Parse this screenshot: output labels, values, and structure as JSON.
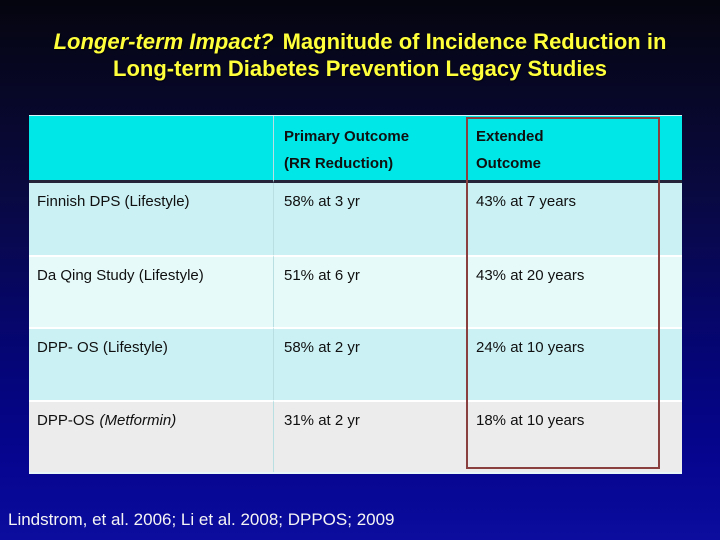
{
  "title": {
    "line1_italic": "Longer-term Impact?",
    "line1_rest": "Magnitude of Incidence Reduction in",
    "line2": "Long-term Diabetes Prevention Legacy Studies"
  },
  "table": {
    "header": {
      "study_col": "",
      "primary_line1": "Primary Outcome",
      "primary_line2": "(RR Reduction)",
      "extended_line1": "Extended",
      "extended_line2": "Outcome"
    },
    "rows": [
      {
        "label": "Finnish DPS (Lifestyle)",
        "label_italic": "",
        "primary": "58% at 3 yr",
        "extended": "43% at 7 years"
      },
      {
        "label": "Da Qing Study (Lifestyle)",
        "label_italic": "",
        "primary": "51% at 6 yr",
        "extended": "43% at 20 years"
      },
      {
        "label": "DPP- OS (Lifestyle)",
        "label_italic": "",
        "primary": "58% at 2 yr",
        "extended": "24% at 10 years"
      },
      {
        "label": "DPP-OS",
        "label_italic": "(Metformin)",
        "primary": "31% at 2 yr",
        "extended": "18% at 10 years"
      }
    ]
  },
  "citation": "Lindstrom, et al. 2006; Li et al. 2008; DPPOS; 2009",
  "colors": {
    "title_yellow": "#ffff3b",
    "header_cyan": "#00e7e7",
    "row_cyan": "#cbf1f4",
    "row_light": "#e7fafa",
    "row_gray": "#edecec",
    "highlight_border": "#8b4040",
    "bg_top": "#05050f",
    "bg_bottom": "#0c0c9e"
  }
}
